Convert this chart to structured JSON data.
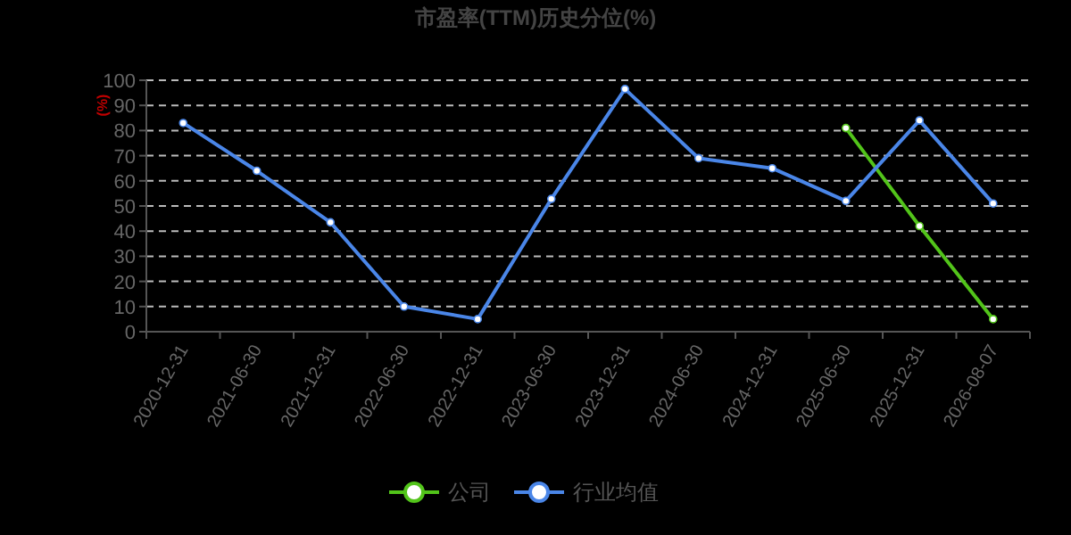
{
  "chart_data": {
    "type": "line",
    "title": "市盈率(TTM)历史分位(%)",
    "ylabel": "(%)",
    "categories": [
      "2020-12-31",
      "2021-06-30",
      "2021-12-31",
      "2022-06-30",
      "2022-12-31",
      "2023-06-30",
      "2023-12-31",
      "2024-06-30",
      "2024-12-31",
      "2025-06-30",
      "2025-12-31",
      "2026-08-07"
    ],
    "series": [
      {
        "name": "公司",
        "color": "#52c41a",
        "values": [
          null,
          null,
          null,
          null,
          null,
          null,
          null,
          null,
          null,
          81,
          42,
          5
        ]
      },
      {
        "name": "行业均值",
        "color": "#4a86e8",
        "values": [
          83,
          64,
          43.5,
          10,
          5,
          52.8,
          96.5,
          69,
          65,
          52,
          84,
          51
        ]
      }
    ],
    "ylim": [
      0,
      100
    ],
    "yticks": [
      0,
      10,
      20,
      30,
      40,
      50,
      60,
      70,
      80,
      90,
      100
    ],
    "grid": "y",
    "legend": "bottom",
    "marker": "circle"
  }
}
